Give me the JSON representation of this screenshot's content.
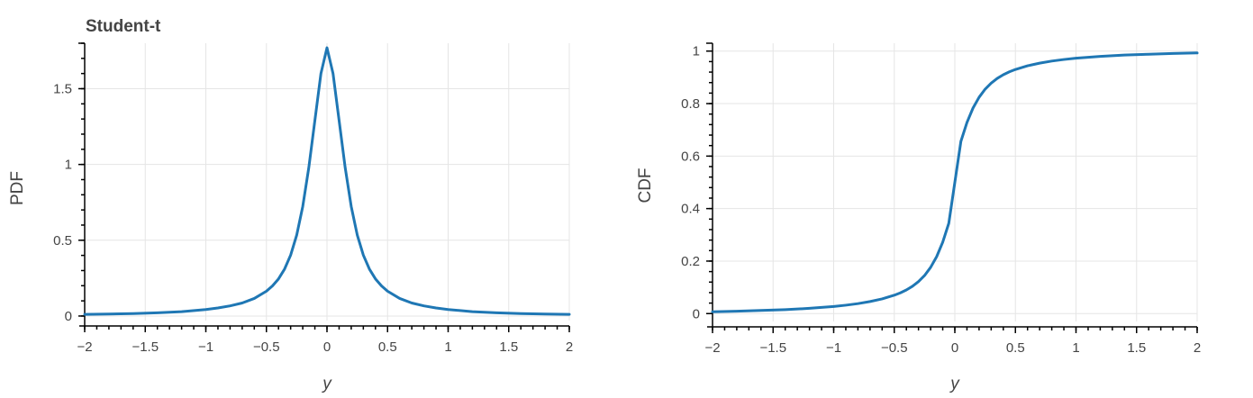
{
  "chart_data": [
    {
      "type": "line",
      "title": "Student-t",
      "xlabel": "y",
      "ylabel": "PDF",
      "xlim": [
        -2,
        2
      ],
      "ylim": [
        -0.03,
        1.8
      ],
      "x_ticks": [
        -2,
        -1.5,
        -1,
        -0.5,
        0,
        0.5,
        1,
        1.5,
        2
      ],
      "x_tick_labels": [
        "−2",
        "−1.5",
        "−1",
        "−0.5",
        "0",
        "0.5",
        "1",
        "1.5",
        "2"
      ],
      "y_ticks": [
        0,
        0.5,
        1,
        1.5
      ],
      "y_tick_labels": [
        "0",
        "0.5",
        "1",
        "1.5"
      ],
      "grid": true,
      "series": [
        {
          "color": "#1f77b4",
          "x": [
            -2,
            -1.8,
            -1.6,
            -1.4,
            -1.2,
            -1.0,
            -0.9,
            -0.8,
            -0.7,
            -0.6,
            -0.5,
            -0.45,
            -0.4,
            -0.35,
            -0.3,
            -0.25,
            -0.2,
            -0.15,
            -0.1,
            -0.05,
            0,
            0.05,
            0.1,
            0.15,
            0.2,
            0.25,
            0.3,
            0.35,
            0.4,
            0.45,
            0.5,
            0.6,
            0.7,
            0.8,
            0.9,
            1.0,
            1.2,
            1.4,
            1.6,
            1.8,
            2
          ],
          "y": [
            0.011,
            0.013,
            0.016,
            0.021,
            0.029,
            0.043,
            0.053,
            0.067,
            0.086,
            0.116,
            0.164,
            0.199,
            0.245,
            0.31,
            0.402,
            0.534,
            0.723,
            0.98,
            1.29,
            1.6,
            1.77,
            1.6,
            1.29,
            0.98,
            0.723,
            0.534,
            0.402,
            0.31,
            0.245,
            0.199,
            0.164,
            0.116,
            0.086,
            0.067,
            0.053,
            0.043,
            0.029,
            0.021,
            0.016,
            0.013,
            0.011
          ]
        }
      ]
    },
    {
      "type": "line",
      "title": "",
      "xlabel": "y",
      "ylabel": "CDF",
      "xlim": [
        -2,
        2
      ],
      "ylim": [
        -0.03,
        1.03
      ],
      "x_ticks": [
        -2,
        -1.5,
        -1,
        -0.5,
        0,
        0.5,
        1,
        1.5,
        2
      ],
      "x_tick_labels": [
        "−2",
        "−1.5",
        "−1",
        "−0.5",
        "0",
        "0.5",
        "1",
        "1.5",
        "2"
      ],
      "y_ticks": [
        0,
        0.2,
        0.4,
        0.6,
        0.8,
        1
      ],
      "y_tick_labels": [
        "0",
        "0.2",
        "0.4",
        "0.6",
        "0.8",
        "1"
      ],
      "grid": true,
      "series": [
        {
          "color": "#1f77b4",
          "x": [
            -2,
            -1.8,
            -1.6,
            -1.4,
            -1.2,
            -1.0,
            -0.9,
            -0.8,
            -0.7,
            -0.6,
            -0.5,
            -0.45,
            -0.4,
            -0.35,
            -0.3,
            -0.25,
            -0.2,
            -0.15,
            -0.1,
            -0.05,
            0,
            0.05,
            0.1,
            0.15,
            0.2,
            0.25,
            0.3,
            0.35,
            0.4,
            0.45,
            0.5,
            0.6,
            0.7,
            0.8,
            0.9,
            1.0,
            1.2,
            1.4,
            1.6,
            1.8,
            2
          ],
          "y": [
            0.007,
            0.009,
            0.012,
            0.015,
            0.02,
            0.027,
            0.032,
            0.038,
            0.046,
            0.056,
            0.07,
            0.079,
            0.09,
            0.104,
            0.122,
            0.145,
            0.176,
            0.217,
            0.272,
            0.344,
            0.5,
            0.656,
            0.728,
            0.783,
            0.824,
            0.855,
            0.878,
            0.896,
            0.91,
            0.921,
            0.93,
            0.944,
            0.954,
            0.962,
            0.968,
            0.973,
            0.98,
            0.985,
            0.988,
            0.991,
            0.993
          ]
        }
      ]
    }
  ]
}
